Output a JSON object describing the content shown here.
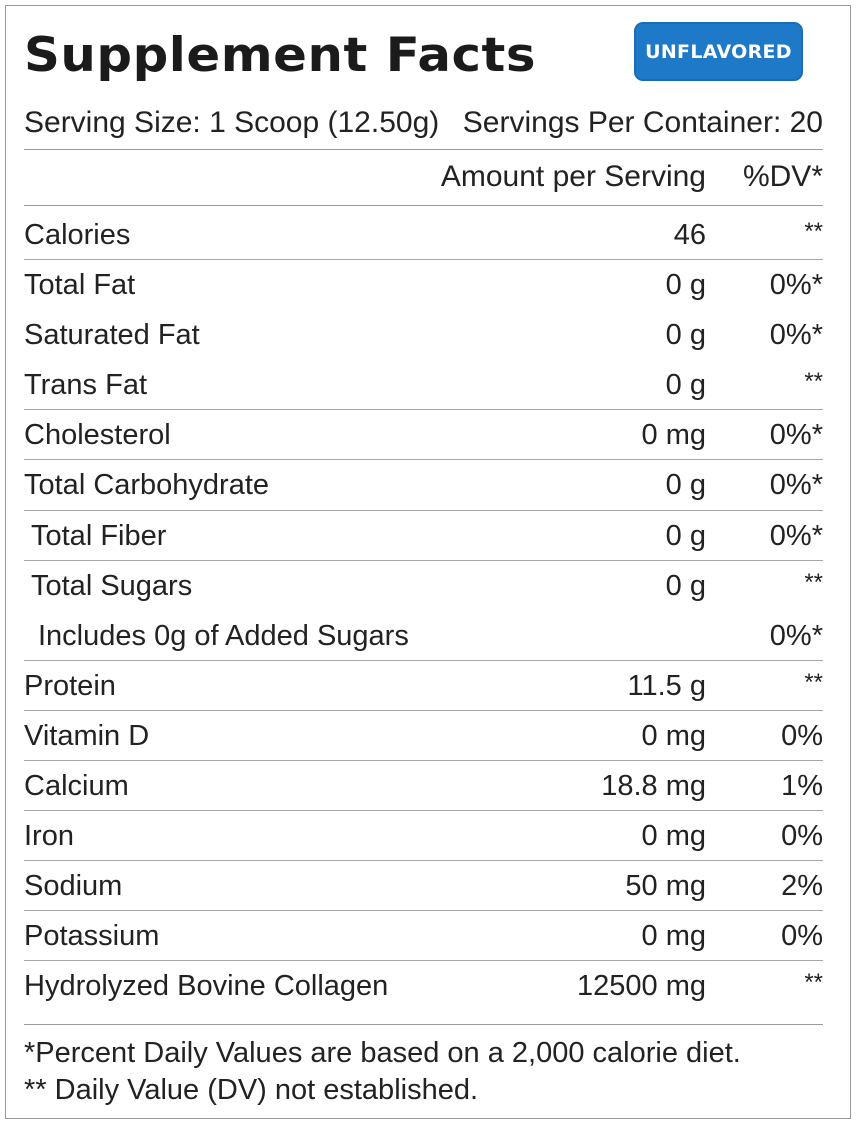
{
  "header": {
    "title": "Supplement Facts",
    "badge": "UNFLAVORED",
    "serving_size": "Serving Size: 1 Scoop (12.50g)",
    "servings_per_container": "Servings Per Container: 20"
  },
  "columns": {
    "amount": "Amount per Serving",
    "dv": "%DV*"
  },
  "rows": [
    {
      "name": "Calories",
      "amount": "46",
      "dv": "**"
    },
    {
      "name": "Total Fat",
      "amount": "0 g",
      "dv": "0%*"
    },
    {
      "name": "Saturated Fat",
      "amount": "0 g",
      "dv": "0%*"
    },
    {
      "name": "Trans Fat",
      "amount": "0 g",
      "dv": "**"
    },
    {
      "name": "Cholesterol",
      "amount": "0 mg",
      "dv": "0%*"
    },
    {
      "name": "Total Carbohydrate",
      "amount": "0 g",
      "dv": "0%*"
    },
    {
      "name": "Total Fiber",
      "amount": "0 g",
      "dv": "0%*"
    },
    {
      "name": "Total Sugars",
      "amount": "0 g",
      "dv": "**"
    },
    {
      "name": "Includes 0g of Added Sugars",
      "amount": "",
      "dv": "0%*"
    },
    {
      "name": "Protein",
      "amount": "11.5 g",
      "dv": "**"
    },
    {
      "name": "Vitamin D",
      "amount": "0 mg",
      "dv": "0%"
    },
    {
      "name": "Calcium",
      "amount": "18.8 mg",
      "dv": "1%"
    },
    {
      "name": "Iron",
      "amount": "0 mg",
      "dv": "0%"
    },
    {
      "name": "Sodium",
      "amount": "50 mg",
      "dv": "2%"
    },
    {
      "name": "Potassium",
      "amount": "0 mg",
      "dv": "0%"
    },
    {
      "name": "Hydrolyzed Bovine Collagen",
      "amount": "12500 mg",
      "dv": "**"
    }
  ],
  "footnotes": {
    "dv_basis": "*Percent Daily Values are based on a 2,000 calorie diet.",
    "not_established": "** Daily Value (DV) not established."
  },
  "colors": {
    "badge_background": "#1e7ac8",
    "text": "#222222",
    "rule": "#9a9a9a"
  }
}
